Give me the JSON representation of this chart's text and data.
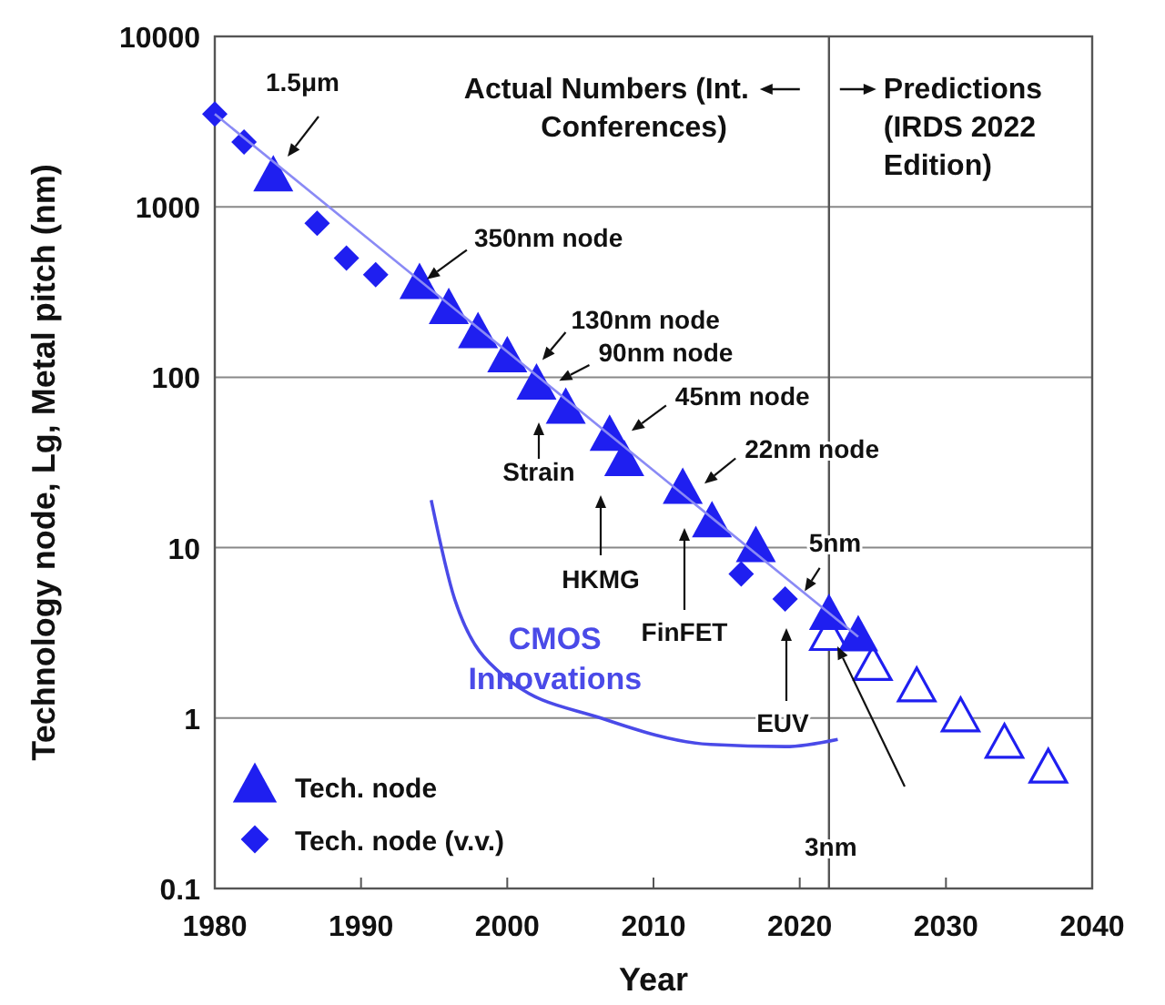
{
  "chart_data": {
    "type": "scatter",
    "xlabel": "Year",
    "ylabel": "Technology node, Lg, Metal pitch (nm)",
    "xlim": [
      1980,
      2040
    ],
    "xticks": [
      1980,
      1990,
      2000,
      2010,
      2020,
      2030,
      2040
    ],
    "ylim": [
      0.1,
      10000
    ],
    "yticks": [
      0.1,
      1,
      10,
      100,
      1000,
      10000
    ],
    "log": "y",
    "grid": "y",
    "legend": "bottom left",
    "series": [
      {
        "type": "line",
        "color": "#8a8af5",
        "x": [
          1980,
          2024
        ],
        "values": [
          3500,
          3
        ]
      },
      {
        "type": "line",
        "name": "CMOS Innovations",
        "color": "#4a4ae8",
        "x": [
          1994.8,
          1996.4,
          2000,
          2006.4,
          2013.9,
          2019,
          2022.6
        ],
        "values": [
          19,
          5,
          1.7,
          1,
          0.7,
          0.68,
          0.75
        ]
      },
      {
        "name": "Tech. node (v.v.)",
        "color": "#1f1ff0",
        "marker": "diamond",
        "x": [
          1980,
          1982,
          1987,
          1989,
          1991,
          2016,
          2019
        ],
        "values": [
          3500,
          2400,
          800,
          500,
          400,
          7,
          5
        ]
      },
      {
        "color": "#1f1ff0",
        "marker": "triangle-open",
        "x": [
          2022,
          2025,
          2028,
          2031,
          2034,
          2037
        ],
        "values": [
          3,
          2,
          1.5,
          1,
          0.7,
          0.5
        ]
      },
      {
        "name": "Tech. node",
        "color": "#1f1ff0",
        "marker": "triangle",
        "x": [
          1984,
          1994,
          1996,
          1998,
          2000,
          2002,
          2004,
          2007,
          2008,
          2012,
          2014,
          2017,
          2022,
          2024
        ],
        "values": [
          1500,
          350,
          250,
          180,
          130,
          90,
          65,
          45,
          32,
          22,
          14,
          10,
          4,
          3
        ]
      }
    ],
    "ref_lines": [
      {
        "axis": "x",
        "value": 2022,
        "color": "#555555"
      }
    ],
    "annotations": [
      "1.5μm",
      {
        "text": "350nm node",
        "x": 1994,
        "y": 350
      },
      {
        "text": "130nm node",
        "x": 2002,
        "y": 115
      },
      {
        "text": "90nm node",
        "x": 2003,
        "y": 90
      },
      {
        "text": "45nm node",
        "x": 2008,
        "y": 45
      },
      {
        "text": "22nm node",
        "x": 2013,
        "y": 22
      },
      "Strain",
      "HKMG",
      "FinFET",
      "EUV",
      {
        "text": "5nm",
        "x": 2020,
        "y": 5
      },
      "3nm",
      "Actual Numbers (Int.\nConferences)",
      "Predictions\n(IRDS 2022\nEdition)"
    ]
  }
}
